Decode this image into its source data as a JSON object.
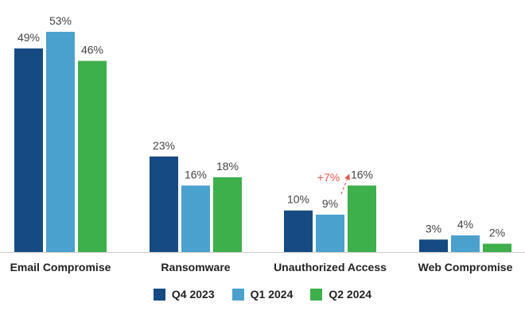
{
  "chart_data": {
    "type": "bar",
    "categories": [
      "Email Compromise",
      "Ransomware",
      "Unauthorized Access",
      "Web Compromise"
    ],
    "series": [
      {
        "name": "Q4 2023",
        "color": "#154a83",
        "values": [
          49,
          23,
          10,
          3
        ],
        "labels": [
          "49%",
          "23%",
          "10%",
          "3%"
        ]
      },
      {
        "name": "Q1 2024",
        "color": "#4aa1ce",
        "values": [
          53,
          16,
          9,
          4
        ],
        "labels": [
          "53%",
          "16%",
          "9%",
          "4%"
        ]
      },
      {
        "name": "Q2 2024",
        "color": "#3daf4b",
        "values": [
          46,
          18,
          16,
          2
        ],
        "labels": [
          "46%",
          "18%",
          "16%",
          "2%"
        ]
      }
    ],
    "ylim": [
      0,
      53
    ],
    "grid": false,
    "legend_position": "bottom",
    "annotations": [
      {
        "text": "+7%",
        "category": "Unauthorized Access",
        "from_series": "Q1 2024",
        "to_series": "Q2 2024",
        "color": "#e8574c",
        "style": "dashed-arrow"
      }
    ]
  }
}
